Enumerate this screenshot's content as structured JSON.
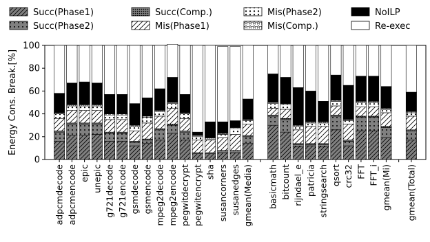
{
  "chart_data": {
    "type": "bar",
    "stacked": true,
    "ylabel": "Energy Cons. Break.[%]",
    "ylim": [
      0,
      100
    ],
    "yticks": [
      0,
      20,
      40,
      60,
      80,
      100
    ],
    "grid": false,
    "legend_position": "top",
    "categories": [
      "adpcmdecode",
      "adpcmencode",
      "epic",
      "unepic",
      "g721decode",
      "g721encode",
      "gsmdecode",
      "gsmencode",
      "mpeg2decode",
      "mpeg2encode",
      "pegwitdecrypt",
      "pegwitencrypt",
      "sha",
      "susancorners",
      "susanedges",
      "gmean(Media)",
      "",
      "basicmath",
      "bitcount",
      "rijndael_e",
      "patricia",
      "stringsearch",
      "qsort",
      "crc32",
      "FFT",
      "FFT_i",
      "gmean(Mi)",
      "",
      "gmean(Total)"
    ],
    "series": [
      {
        "name": "Succ(Phase1)",
        "pattern": "diag",
        "values": [
          16,
          21,
          21,
          22,
          16,
          16,
          12,
          14,
          17,
          23,
          17,
          5,
          5,
          6,
          6,
          14,
          null,
          30,
          24,
          11,
          12,
          11,
          26,
          12,
          25,
          25,
          19,
          null,
          17
        ]
      },
      {
        "name": "Succ(Phase2)",
        "pattern": "dots",
        "values": [
          8,
          10,
          10,
          9,
          7,
          7,
          3,
          3,
          9,
          7,
          7,
          1,
          1,
          2,
          2,
          6,
          null,
          8,
          11,
          2,
          1,
          2,
          12,
          4,
          12,
          12,
          9,
          null,
          8
        ]
      },
      {
        "name": "Succ(Comp.)",
        "pattern": "dotsdense",
        "values": [
          1,
          1,
          1,
          1,
          1,
          1,
          1,
          1,
          1,
          1,
          1,
          0,
          0,
          0,
          0,
          1,
          null,
          1,
          1,
          1,
          1,
          1,
          1,
          1,
          1,
          1,
          1,
          null,
          1
        ]
      },
      {
        "name": "Mis(Phase1)",
        "pattern": "antidiag",
        "values": [
          11,
          11,
          11,
          11,
          11,
          11,
          9,
          14,
          11,
          14,
          11,
          11,
          11,
          11,
          14,
          10,
          null,
          6,
          8,
          12,
          15,
          15,
          8,
          14,
          8,
          8,
          12,
          null,
          12
        ]
      },
      {
        "name": "Mis(Phase2)",
        "pattern": "bumps",
        "values": [
          4,
          4,
          4,
          4,
          4,
          4,
          4,
          5,
          4,
          4,
          4,
          3,
          1,
          3,
          5,
          3,
          null,
          4,
          4,
          3,
          3,
          3,
          4,
          3,
          4,
          4,
          3,
          null,
          3
        ]
      },
      {
        "name": "Mis(Comp.)",
        "pattern": "stars",
        "values": [
          1,
          1,
          1,
          1,
          1,
          1,
          1,
          1,
          1,
          1,
          1,
          1,
          1,
          1,
          1,
          1,
          null,
          1,
          1,
          1,
          1,
          1,
          1,
          1,
          1,
          1,
          1,
          null,
          1
        ]
      },
      {
        "name": "NoILP",
        "pattern": "black",
        "values": [
          17,
          19,
          20,
          19,
          17,
          17,
          19,
          16,
          19,
          22,
          16,
          3,
          14,
          10,
          6,
          18,
          null,
          25,
          23,
          33,
          27,
          18,
          22,
          30,
          22,
          22,
          19,
          null,
          17
        ]
      },
      {
        "name": "Re-exec",
        "pattern": "white",
        "values": [
          42,
          33,
          32,
          33,
          43,
          43,
          51,
          46,
          38,
          29,
          43,
          76,
          67,
          66,
          65,
          47,
          null,
          25,
          28,
          37,
          40,
          49,
          26,
          35,
          27,
          27,
          36,
          null,
          41
        ]
      }
    ]
  },
  "legend": [
    {
      "label": "Succ(Phase1)"
    },
    {
      "label": "Succ(Comp.)"
    },
    {
      "label": "Mis(Phase2)"
    },
    {
      "label": "NoILP"
    },
    {
      "label": "Succ(Phase2)"
    },
    {
      "label": "Mis(Phase1)"
    },
    {
      "label": "Mis(Comp.)"
    },
    {
      "label": "Re-exec"
    }
  ]
}
